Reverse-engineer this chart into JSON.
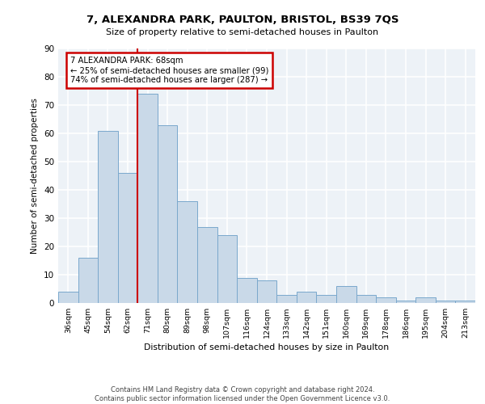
{
  "title1": "7, ALEXANDRA PARK, PAULTON, BRISTOL, BS39 7QS",
  "title2": "Size of property relative to semi-detached houses in Paulton",
  "xlabel": "Distribution of semi-detached houses by size in Paulton",
  "ylabel": "Number of semi-detached properties",
  "categories": [
    "36sqm",
    "45sqm",
    "54sqm",
    "62sqm",
    "71sqm",
    "80sqm",
    "89sqm",
    "98sqm",
    "107sqm",
    "116sqm",
    "124sqm",
    "133sqm",
    "142sqm",
    "151sqm",
    "160sqm",
    "169sqm",
    "178sqm",
    "186sqm",
    "195sqm",
    "204sqm",
    "213sqm"
  ],
  "values": [
    4,
    16,
    61,
    46,
    74,
    63,
    36,
    27,
    24,
    9,
    8,
    3,
    4,
    3,
    6,
    3,
    2,
    1,
    2,
    1,
    1
  ],
  "bar_color": "#c9d9e8",
  "bar_edge_color": "#7aa8cc",
  "property_label": "7 ALEXANDRA PARK: 68sqm",
  "smaller_pct": 25,
  "smaller_count": 99,
  "larger_pct": 74,
  "larger_count": 287,
  "vline_color": "#cc0000",
  "vline_index": 3.5,
  "annotation_box_edge": "#cc0000",
  "ylim": [
    0,
    90
  ],
  "yticks": [
    0,
    10,
    20,
    30,
    40,
    50,
    60,
    70,
    80,
    90
  ],
  "footer": "Contains HM Land Registry data © Crown copyright and database right 2024.\nContains public sector information licensed under the Open Government Licence v3.0.",
  "bg_color": "#edf2f7",
  "grid_color": "#ffffff"
}
